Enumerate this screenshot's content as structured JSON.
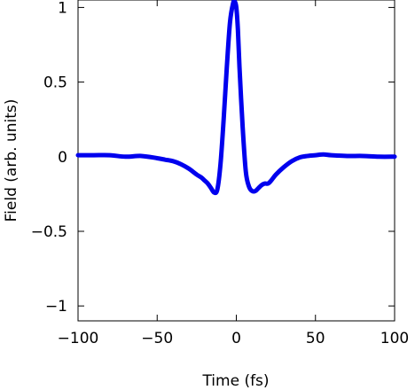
{
  "chart_data": {
    "type": "line",
    "title": "",
    "xlabel": "Time (fs)",
    "ylabel": "Field (arb. units)",
    "xlim": [
      -100,
      100
    ],
    "ylim": [
      -1.1,
      1.05
    ],
    "xticks": [
      -100,
      -50,
      0,
      50,
      100
    ],
    "xtick_labels": [
      "−100",
      "−50",
      "0",
      "50",
      "100"
    ],
    "yticks": [
      1,
      0.5,
      0,
      -0.5,
      -1
    ],
    "ytick_labels": [
      "1",
      "0.5",
      "0",
      "−0.5",
      "−1"
    ],
    "grid": false,
    "legend": "none",
    "line_color": "#0000ee",
    "series": [
      {
        "x": [
          -100,
          -90,
          -80,
          -70,
          -60,
          -50,
          -45,
          -40,
          -35,
          -30,
          -25,
          -22,
          -20,
          -18,
          -16,
          -14,
          -12,
          -10,
          -8,
          -6,
          -4,
          -2,
          -1,
          0,
          1,
          2,
          4,
          6,
          8,
          10,
          12,
          14,
          16,
          18,
          20,
          22,
          25,
          30,
          35,
          40,
          45,
          50,
          55,
          60,
          70,
          80,
          90,
          100
        ],
        "y": [
          0.01,
          0.01,
          0.01,
          0.0,
          0.005,
          -0.01,
          -0.02,
          -0.03,
          -0.05,
          -0.08,
          -0.12,
          -0.14,
          -0.16,
          -0.18,
          -0.21,
          -0.24,
          -0.22,
          -0.05,
          0.25,
          0.6,
          0.9,
          1.03,
          1.04,
          1.0,
          0.85,
          0.6,
          0.2,
          -0.1,
          -0.2,
          -0.23,
          -0.23,
          -0.21,
          -0.19,
          -0.18,
          -0.18,
          -0.16,
          -0.12,
          -0.07,
          -0.03,
          -0.005,
          0.005,
          0.01,
          0.015,
          0.01,
          0.005,
          0.005,
          0.0,
          0.0
        ]
      }
    ]
  }
}
